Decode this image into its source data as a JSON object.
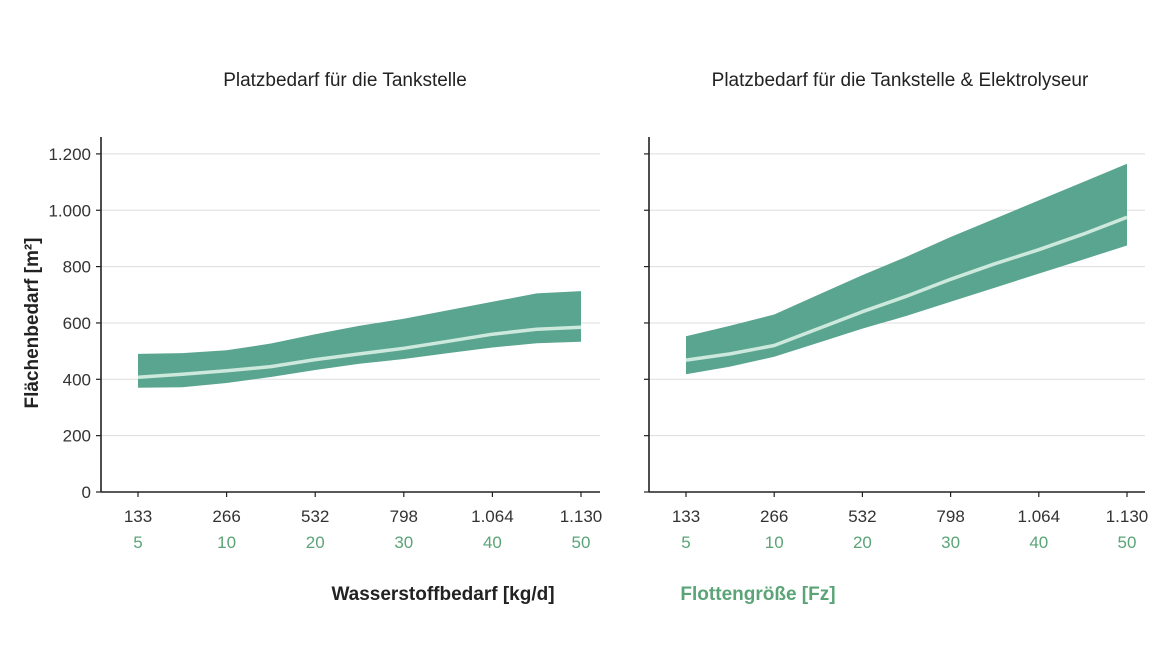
{
  "chart_data": {
    "type": "area",
    "ylabel": "Flächenbedarf [m²]",
    "xlabel_primary": "Wasserstoffbedarf [kg/d]",
    "xlabel_secondary": "Flottengröße [Fz]",
    "x_tick_labels": [
      "133",
      "266",
      "532",
      "798",
      "1.064",
      "1.130"
    ],
    "x_secondary_tick_labels": [
      "5",
      "10",
      "20",
      "30",
      "40",
      "50"
    ],
    "y_tick_labels": [
      "0",
      "200",
      "400",
      "600",
      "800",
      "1.000",
      "1.200"
    ],
    "y_ticks": [
      0,
      200,
      400,
      600,
      800,
      1000,
      1200
    ],
    "ylim": [
      0,
      1260
    ],
    "grid": true,
    "colors": {
      "band": "#5aa58f",
      "mean_line": "#cde8dd",
      "axis": "#222222",
      "grid": "#dddddd",
      "secondary_label": "#5aa477"
    },
    "panels": [
      {
        "title": "Platzbedarf für die Tankstelle",
        "x_index": [
          0,
          0.5,
          1,
          1.5,
          2,
          2.5,
          3,
          3.5,
          4,
          4.5,
          5
        ],
        "upper": [
          490,
          493,
          503,
          527,
          560,
          590,
          615,
          645,
          675,
          705,
          713
        ],
        "mean": [
          407,
          418,
          430,
          445,
          470,
          490,
          510,
          535,
          560,
          578,
          585
        ],
        "lower": [
          370,
          372,
          387,
          408,
          433,
          455,
          472,
          493,
          513,
          528,
          533
        ]
      },
      {
        "title": "Platzbedarf für die Tankstelle & Elektrolyseur",
        "x_index": [
          0,
          0.5,
          1,
          1.5,
          2,
          2.5,
          3,
          3.5,
          4,
          4.5,
          5
        ],
        "upper": [
          553,
          590,
          630,
          700,
          770,
          835,
          905,
          970,
          1035,
          1100,
          1165
        ],
        "mean": [
          468,
          490,
          520,
          580,
          640,
          695,
          755,
          810,
          860,
          915,
          975
        ],
        "lower": [
          418,
          445,
          480,
          530,
          580,
          625,
          675,
          725,
          775,
          825,
          875
        ]
      }
    ]
  }
}
